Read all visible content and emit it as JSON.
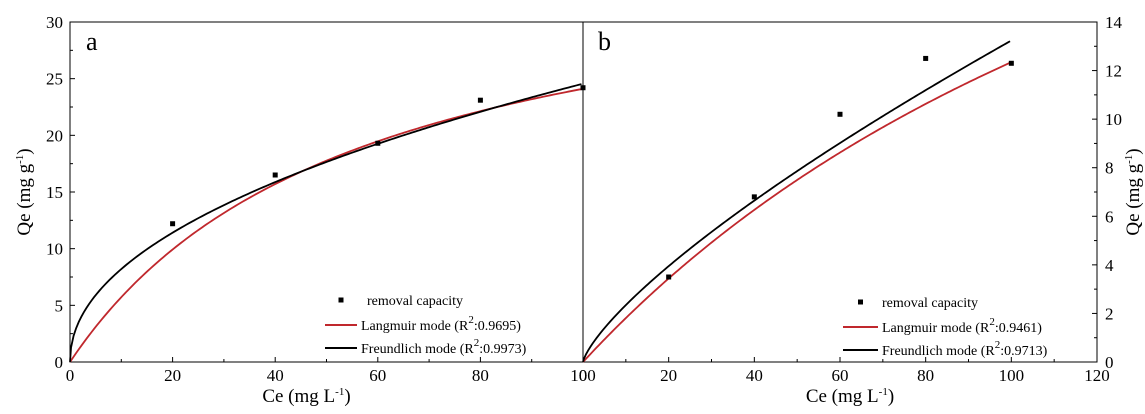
{
  "chart_data": [
    {
      "type": "scatter",
      "panel_label": "a",
      "xlabel_main": "Ce (mg L",
      "xlabel_sup": "-1",
      "xlabel_end": ")",
      "ylabel_main": "Qe (mg g",
      "ylabel_sup": "-1",
      "ylabel_end": ")",
      "xlim": [
        0,
        100
      ],
      "ylim": [
        0,
        30
      ],
      "x_ticks": [
        0,
        20,
        40,
        60,
        80,
        100
      ],
      "y_ticks": [
        0,
        5,
        10,
        15,
        20,
        25,
        30
      ],
      "y_axis_side": "left",
      "legend_position": "bottom-right",
      "points": {
        "name": "removal capacity",
        "color": "#000000",
        "x": [
          20,
          40,
          60,
          80,
          100
        ],
        "y": [
          12.2,
          16.5,
          19.3,
          23.1,
          24.2
        ]
      },
      "series": [
        {
          "name_main": "Langmuir mode (R",
          "name_sup": "2",
          "name_end": ":0.9695)",
          "color": "#c0282d",
          "model": "langmuir",
          "params": {
            "qm": 37.5,
            "kl": 0.018
          }
        },
        {
          "name_main": "Freundlich mode (R",
          "name_sup": "2",
          "name_end": ":0.9973)",
          "color": "#000000",
          "model": "freundlich",
          "params": {
            "kf": 2.74,
            "n": 2.1
          }
        }
      ]
    },
    {
      "type": "scatter",
      "panel_label": "b",
      "xlabel_main": "Ce (mg L",
      "xlabel_sup": "-1",
      "xlabel_end": ")",
      "ylabel_main": "Qe (mg g",
      "ylabel_sup": "-1",
      "ylabel_end": ")",
      "xlim": [
        0,
        120
      ],
      "ylim": [
        0,
        14
      ],
      "x_ticks": [
        0,
        20,
        40,
        60,
        80,
        100,
        120
      ],
      "y_ticks": [
        0,
        2,
        4,
        6,
        8,
        10,
        12,
        14
      ],
      "y_axis_side": "right",
      "legend_position": "bottom-right",
      "points": {
        "name": "removal capacity",
        "color": "#000000",
        "x": [
          20,
          40,
          60,
          80,
          100
        ],
        "y": [
          3.5,
          6.8,
          10.2,
          12.5,
          12.3
        ]
      },
      "series": [
        {
          "name_main": "Langmuir mode (R",
          "name_sup": "2",
          "name_end": ":0.9461)",
          "color": "#c0282d",
          "model": "langmuir",
          "params": {
            "qm": 35.0,
            "kl": 0.00545
          }
        },
        {
          "name_main": "Freundlich mode (R",
          "name_sup": "2",
          "name_end": ":0.9713)",
          "color": "#000000",
          "model": "freundlich",
          "params": {
            "kf": 0.415,
            "n": 1.33
          }
        }
      ]
    }
  ]
}
